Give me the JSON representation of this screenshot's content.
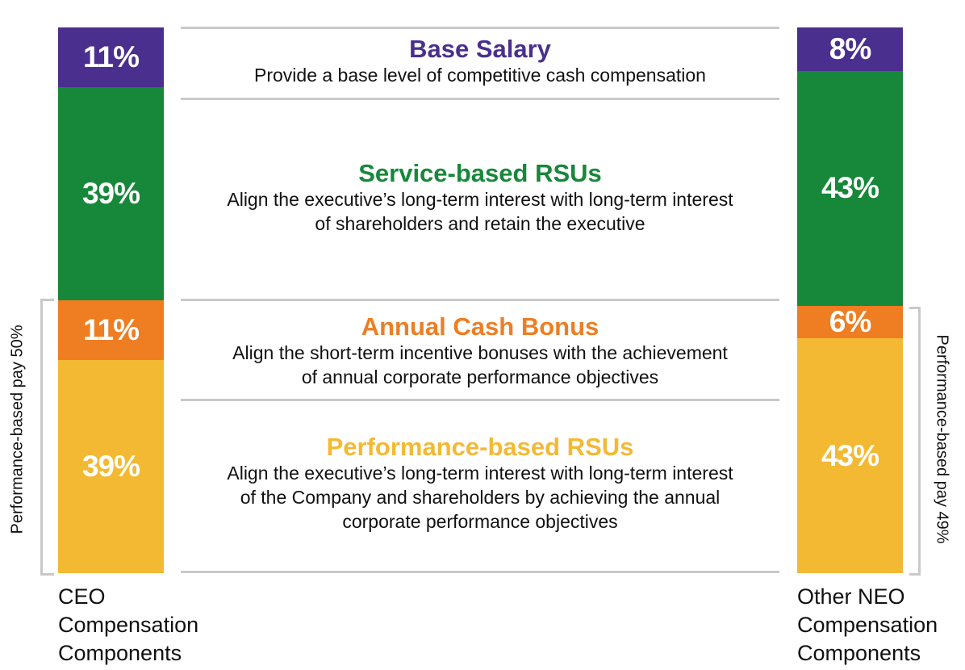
{
  "chart_data": {
    "type": "bar",
    "stacked": true,
    "categories": [
      "CEO Compensation Components",
      "Other NEO Compensation Components"
    ],
    "series": [
      {
        "name": "Base Salary",
        "values": [
          11,
          8
        ],
        "labels": [
          "11%",
          "8%"
        ],
        "color": "#4a2f8e"
      },
      {
        "name": "Service-based RSUs",
        "values": [
          39,
          43
        ],
        "labels": [
          "39%",
          "43%"
        ],
        "color": "#17883a"
      },
      {
        "name": "Annual Cash Bonus",
        "values": [
          11,
          6
        ],
        "labels": [
          "11%",
          "6%"
        ],
        "color": "#ef7d22"
      },
      {
        "name": "Performance-based RSUs",
        "values": [
          39,
          43
        ],
        "labels": [
          "39%",
          "43%"
        ],
        "color": "#f4b933"
      }
    ]
  },
  "columns": {
    "ceo": {
      "label_lines": [
        "CEO",
        "Compensation",
        "Components"
      ],
      "performance_label": "Performance-based pay 50%"
    },
    "neo": {
      "label_lines": [
        "Other NEO",
        "Compensation",
        "Components"
      ],
      "performance_label": "Performance-based pay 49%"
    }
  },
  "components": [
    {
      "title": "Base Salary",
      "color": "#4a2f8e",
      "lines": [
        "Provide a base level of competitive cash compensation"
      ]
    },
    {
      "title": "Service-based RSUs",
      "color": "#17883a",
      "lines": [
        "Align the executive’s long-term interest with long-term interest",
        "of shareholders and retain the executive"
      ]
    },
    {
      "title": "Annual Cash Bonus",
      "color": "#ef7d22",
      "lines": [
        "Align the short-term incentive bonuses with the achievement",
        "of annual corporate performance objectives"
      ]
    },
    {
      "title": "Performance-based RSUs",
      "color": "#f4b933",
      "lines": [
        "Align the executive’s long-term interest with long-term interest",
        "of the Company and shareholders by achieving the annual",
        "corporate performance objectives"
      ]
    }
  ]
}
